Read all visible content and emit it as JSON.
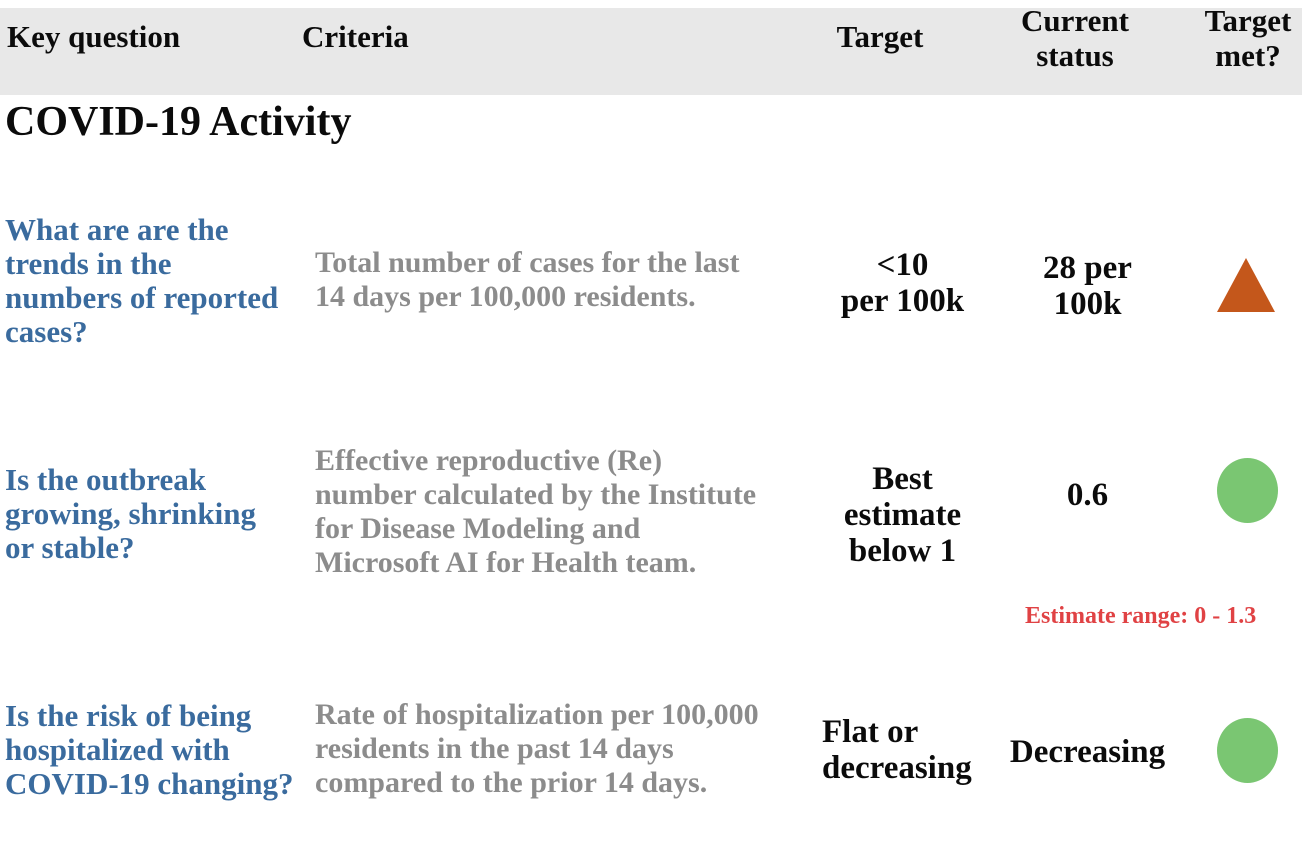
{
  "table": {
    "header": {
      "key_question": "Key question",
      "criteria": "Criteria",
      "target": "Target",
      "current_status": "Current\nstatus",
      "target_met": "Target\nmet?"
    },
    "section_title": "COVID-19 Activity",
    "rows": [
      {
        "question": "What are are the\ntrends in the\nnumbers of reported\ncases?",
        "criteria": "Total number of cases for the last\n14 days per 100,000 residents.",
        "target": "<10\nper 100k",
        "current_status": "28 per\n100k",
        "icon": "triangle-up",
        "icon_color": "#c4571b"
      },
      {
        "question": "Is the outbreak\ngrowing, shrinking\nor stable?",
        "criteria": "Effective reproductive (Re)\nnumber calculated by the Institute\nfor Disease Modeling and\nMicrosoft AI for Health team.",
        "target": "Best\nestimate\nbelow 1",
        "current_status": "0.6",
        "icon": "circle",
        "icon_color": "#7ac672",
        "note": "Estimate range: 0 - 1.3",
        "note_color": "#e04244"
      },
      {
        "question": "Is the risk of being\nhospitalized with\nCOVID-19 changing?",
        "criteria": "Rate of hospitalization per 100,000\nresidents in the past 14 days\ncompared to the prior 14 days.",
        "target": "Flat or\ndecreasing",
        "current_status": "Decreasing",
        "icon": "circle",
        "icon_color": "#7ac672"
      }
    ]
  },
  "colors": {
    "header_background": "#e8e8e8",
    "question_blue": "#3a6b9e",
    "criteria_gray": "#8c8c8c",
    "text_black": "#0b0b0b",
    "note_red": "#e04244",
    "triangle_orange": "#c4571b",
    "circle_green": "#7ac672"
  }
}
